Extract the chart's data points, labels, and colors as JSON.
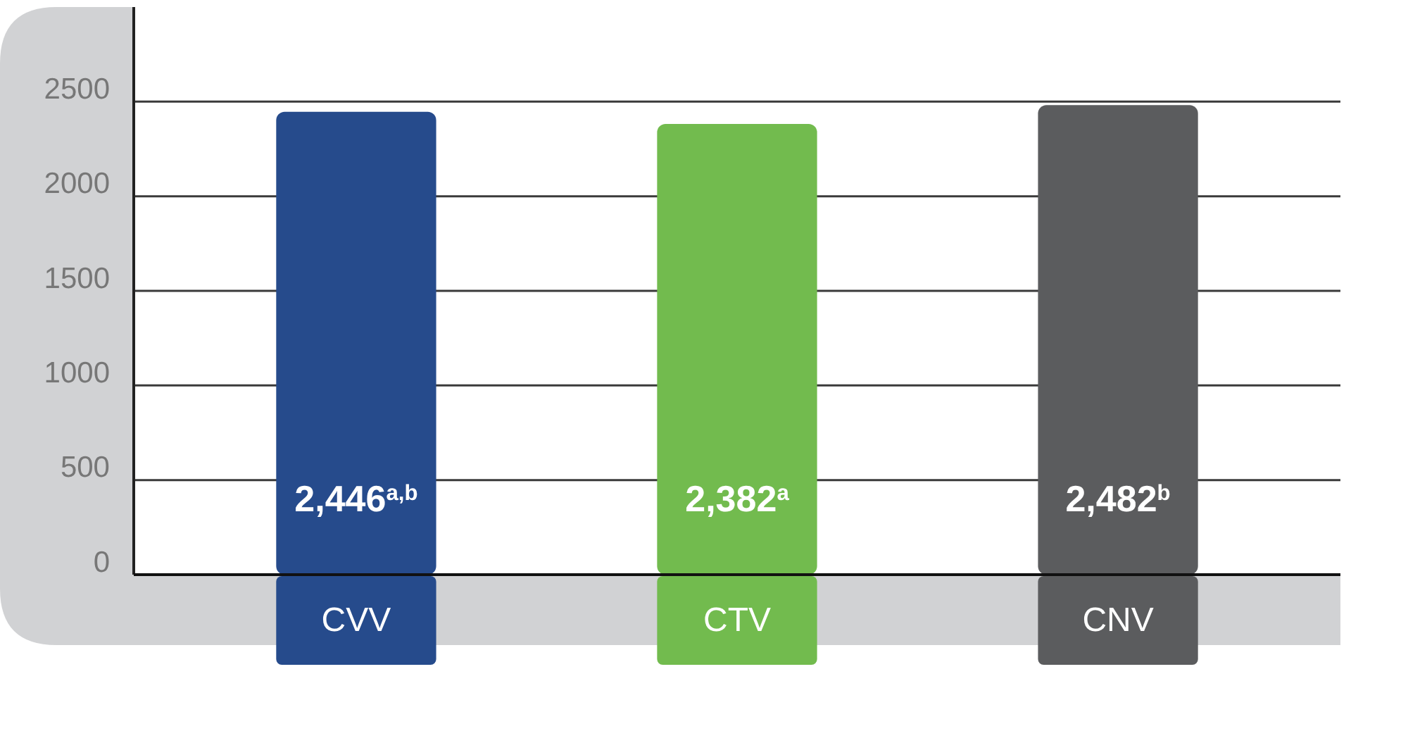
{
  "chart_data": {
    "type": "bar",
    "categories": [
      "CVV",
      "CTV",
      "CNV"
    ],
    "values": [
      2446,
      2382,
      2482
    ],
    "colors": [
      "#264b8c",
      "#72bb4e",
      "#5b5c5e"
    ],
    "value_labels": [
      "2,446$^{a,b}$",
      "2,382$^{a}$",
      "2,482$^{b}$"
    ],
    "ylim": [
      0,
      3000
    ],
    "yticks": [
      0,
      500,
      1000,
      1500,
      2000,
      2500
    ],
    "grid": "y"
  }
}
